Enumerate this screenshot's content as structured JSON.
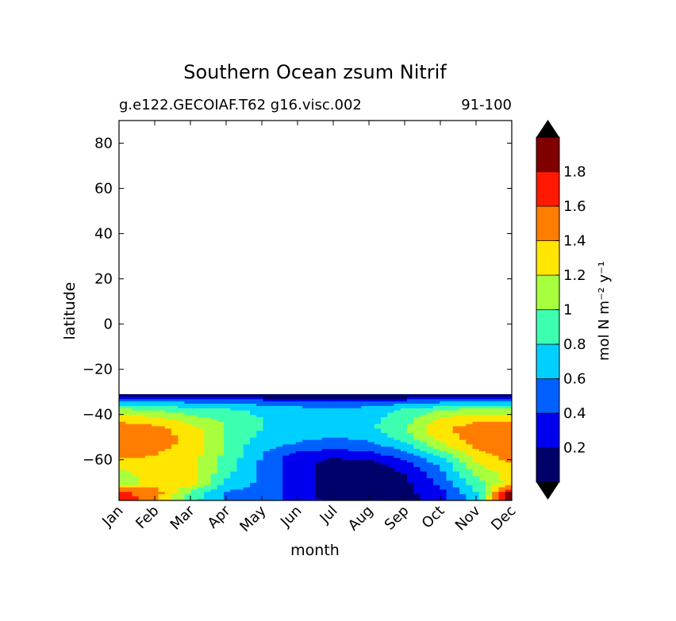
{
  "chart_data": {
    "type": "heatmap",
    "title": "Southern Ocean zsum Nitrif",
    "subtitle_left": "g.e122.GECOIAF.T62 g16.visc.002",
    "subtitle_right": "91-100",
    "xlabel": "month",
    "ylabel": "latitude",
    "x_ticks": [
      "Jan",
      "Feb",
      "Mar",
      "Apr",
      "May",
      "Jun",
      "Jul",
      "Aug",
      "Sep",
      "Oct",
      "Nov",
      "Dec"
    ],
    "y_ticks": [
      80,
      60,
      40,
      20,
      0,
      -20,
      -40,
      -60
    ],
    "ylim": [
      -78,
      90
    ],
    "data_lat_range": [
      -78,
      -31
    ],
    "colorbar": {
      "label": "mol N m⁻² y⁻¹",
      "extend": "both",
      "levels": [
        0,
        0.2,
        0.4,
        0.6,
        0.8,
        1,
        1.2,
        1.4,
        1.6,
        1.8,
        2
      ],
      "tick_labels": [
        "0.2",
        "0.4",
        "0.6",
        "0.8",
        "1",
        "1.2",
        "1.4",
        "1.6",
        "1.8"
      ],
      "colors": [
        "#00006a",
        "#0000ee",
        "#0060ff",
        "#00d0ff",
        "#3dffb0",
        "#a8ff3e",
        "#ffe600",
        "#ff7d00",
        "#ff1900",
        "#800000"
      ],
      "under_color": "#000000",
      "over_color": "#000000"
    },
    "latitudes": [
      -77,
      -74,
      -70,
      -66,
      -62,
      -58,
      -54,
      -50,
      -46,
      -42,
      -38,
      -34,
      -32
    ],
    "values": [
      [
        1.7,
        1.5,
        0.9,
        0.55,
        0.45,
        0.35,
        0.1,
        0.1,
        0.12,
        0.3,
        0.7,
        2.1
      ],
      [
        1.65,
        1.5,
        1.0,
        0.6,
        0.5,
        0.3,
        0.1,
        0.1,
        0.15,
        0.35,
        0.8,
        1.9
      ],
      [
        1.0,
        1.3,
        1.3,
        0.75,
        0.55,
        0.3,
        0.1,
        0.1,
        0.15,
        0.45,
        0.9,
        1.3
      ],
      [
        1.1,
        1.35,
        1.3,
        0.85,
        0.55,
        0.3,
        0.1,
        0.1,
        0.2,
        0.55,
        1.05,
        1.3
      ],
      [
        1.25,
        1.35,
        1.25,
        0.9,
        0.55,
        0.3,
        0.1,
        0.1,
        0.3,
        0.65,
        1.15,
        1.4
      ],
      [
        1.45,
        1.4,
        1.3,
        0.95,
        0.6,
        0.3,
        0.25,
        0.3,
        0.5,
        0.8,
        1.3,
        1.5
      ],
      [
        1.5,
        1.45,
        1.35,
        0.95,
        0.65,
        0.55,
        0.45,
        0.5,
        0.7,
        1.1,
        1.45,
        1.55
      ],
      [
        1.6,
        1.5,
        1.35,
        1.0,
        0.75,
        0.65,
        0.6,
        0.65,
        0.9,
        1.3,
        1.5,
        1.6
      ],
      [
        1.5,
        1.45,
        1.3,
        1.0,
        0.8,
        0.7,
        0.7,
        0.75,
        1.0,
        1.35,
        1.5,
        1.5
      ],
      [
        1.35,
        1.3,
        1.1,
        0.95,
        0.8,
        0.75,
        0.7,
        0.75,
        0.9,
        1.25,
        1.35,
        1.35
      ],
      [
        1.1,
        1.0,
        0.9,
        0.85,
        0.75,
        0.7,
        0.65,
        0.7,
        0.85,
        1.0,
        1.1,
        1.1
      ],
      [
        0.6,
        0.6,
        0.55,
        0.5,
        0.5,
        0.45,
        0.45,
        0.45,
        0.5,
        0.55,
        0.6,
        0.6
      ],
      [
        0.1,
        0.1,
        0.1,
        0.1,
        0.1,
        0.1,
        0.1,
        0.1,
        0.1,
        0.1,
        0.1,
        0.1
      ]
    ]
  }
}
